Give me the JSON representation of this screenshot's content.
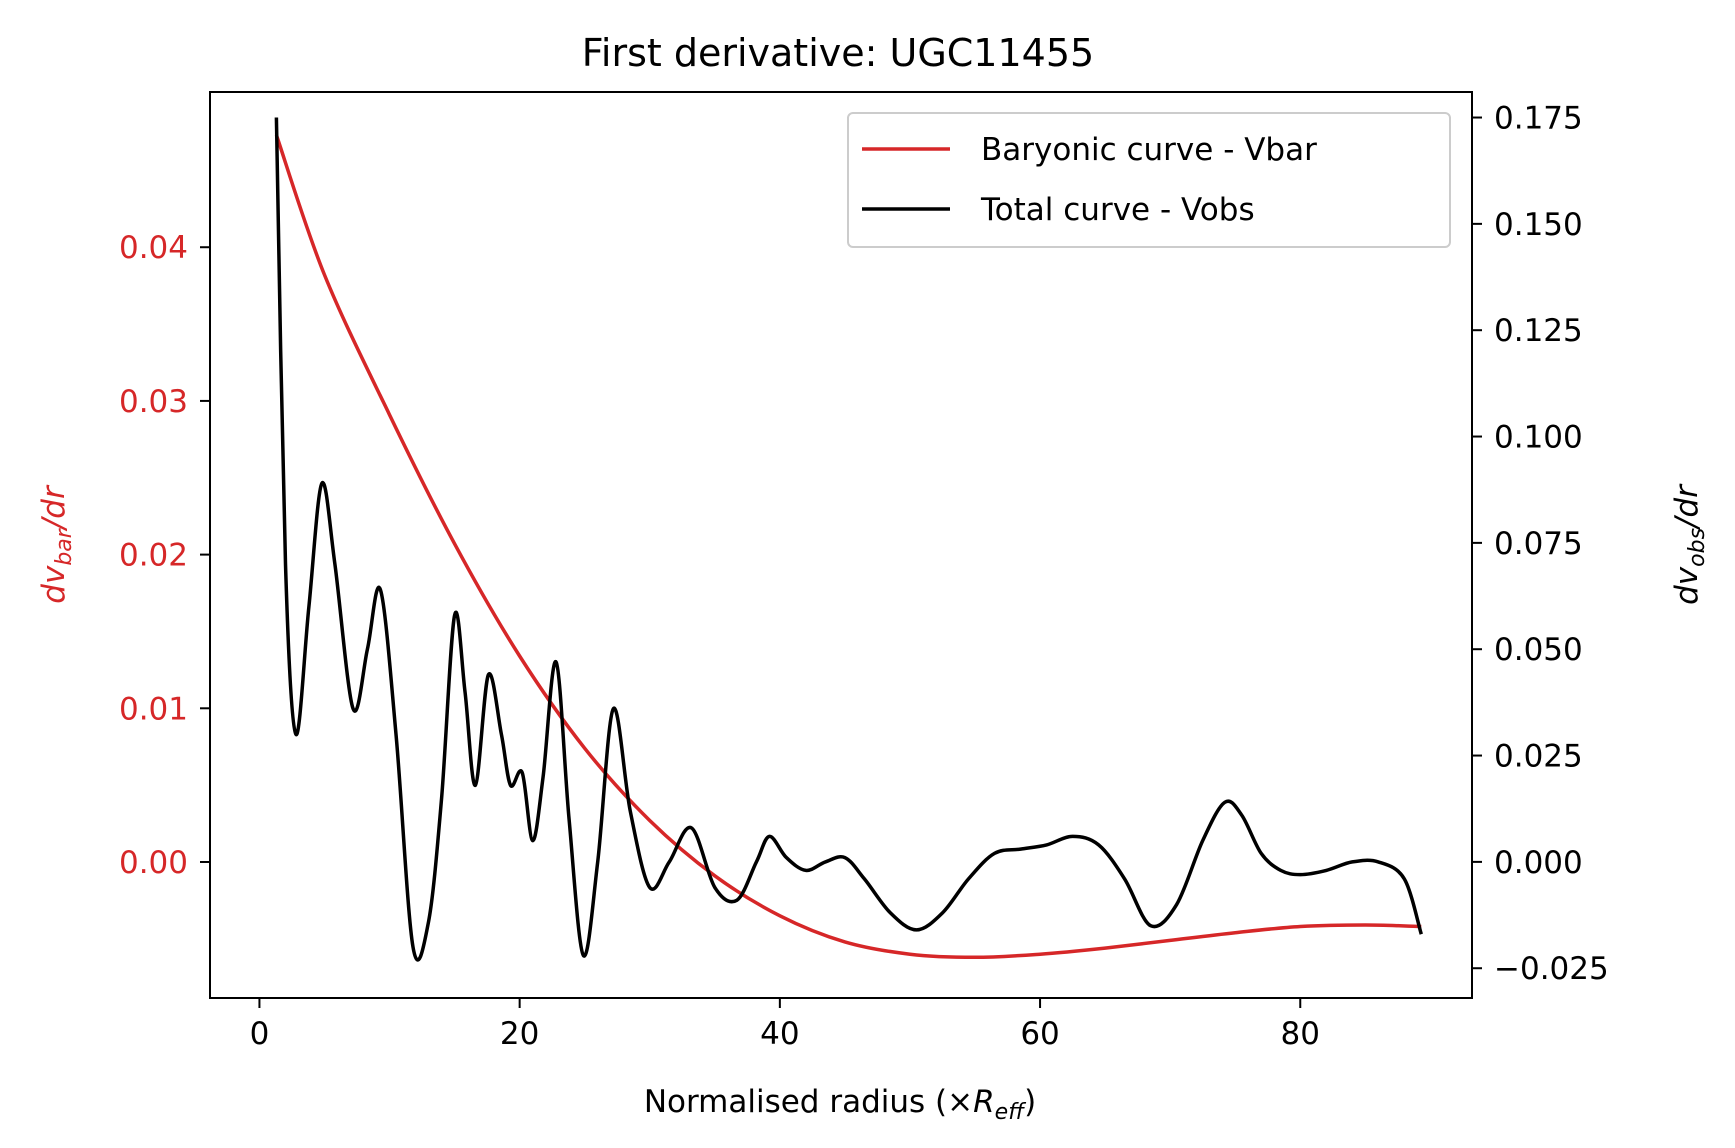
{
  "chart_data": {
    "type": "line",
    "title": "First derivative: UGC11455",
    "xlabel": {
      "main": "Normalised radius (×",
      "symbol": "R",
      "sub": "eff",
      "close": ")"
    },
    "ylabel_left": {
      "prefix": "dv",
      "sub": "bar",
      "suffix": "/dr"
    },
    "ylabel_right": {
      "prefix": "dv",
      "sub": "obs",
      "suffix": "/dr"
    },
    "xlim": [
      -3.8,
      93.2
    ],
    "ylim_left": [
      -0.00885,
      0.0501
    ],
    "ylim_right": [
      -0.032,
      0.181
    ],
    "xticks": [
      0,
      20,
      40,
      60,
      80
    ],
    "xtick_labels": [
      "0",
      "20",
      "40",
      "60",
      "80"
    ],
    "yticks_left": [
      0.0,
      0.01,
      0.02,
      0.03,
      0.04
    ],
    "ytick_labels_left": [
      "0.00",
      "0.01",
      "0.02",
      "0.03",
      "0.04"
    ],
    "yticks_right": [
      -0.025,
      0.0,
      0.025,
      0.05,
      0.075,
      0.1,
      0.125,
      0.15,
      0.175
    ],
    "ytick_labels_right": [
      "−0.025",
      "0.000",
      "0.025",
      "0.050",
      "0.075",
      "0.100",
      "0.125",
      "0.150",
      "0.175"
    ],
    "grid": false,
    "legend_position": "top-right",
    "colors": {
      "bar": "#d62728",
      "obs": "#000000",
      "axis": "#000000"
    },
    "series": [
      {
        "name": "Baryonic curve - Vbar",
        "axis": "left",
        "color": "#d62728",
        "x": [
          1.3,
          5,
          10,
          15,
          20,
          25,
          30,
          35,
          40,
          45,
          50,
          55,
          60,
          65,
          70,
          75,
          80,
          85,
          89.3
        ],
        "y": [
          0.0473,
          0.0382,
          0.0291,
          0.0207,
          0.0134,
          0.0074,
          0.0027,
          -0.0009,
          -0.0035,
          -0.0052,
          -0.006,
          -0.0062,
          -0.006,
          -0.0056,
          -0.0051,
          -0.0046,
          -0.0042,
          -0.0041,
          -0.0042
        ]
      },
      {
        "name": "Total curve - Vobs",
        "axis": "right",
        "color": "#000000",
        "x": [
          1.3,
          2.0,
          2.8,
          3.8,
          4.8,
          5.8,
          7.2,
          8.3,
          9.3,
          10.5,
          11.8,
          13.0,
          14.0,
          15.0,
          15.8,
          16.6,
          17.6,
          18.6,
          19.3,
          20.2,
          21.0,
          21.8,
          22.8,
          23.8,
          24.9,
          26.0,
          27.2,
          28.5,
          30.0,
          31.5,
          33.2,
          35.0,
          36.7,
          38.2,
          39.2,
          40.5,
          42.0,
          43.5,
          45.0,
          46.5,
          48.5,
          50.5,
          52.5,
          54.5,
          56.5,
          58.5,
          60.5,
          62.5,
          64.5,
          66.5,
          68.5,
          70.5,
          72.5,
          74.2,
          75.5,
          77.0,
          78.5,
          80.0,
          82.0,
          84.0,
          86.0,
          88.0,
          89.3
        ],
        "y": [
          0.175,
          0.07,
          0.03,
          0.06,
          0.089,
          0.07,
          0.036,
          0.05,
          0.064,
          0.03,
          -0.02,
          -0.014,
          0.015,
          0.058,
          0.04,
          0.018,
          0.044,
          0.03,
          0.018,
          0.021,
          0.005,
          0.02,
          0.047,
          0.01,
          -0.022,
          0.0,
          0.036,
          0.012,
          -0.006,
          0.0,
          0.008,
          -0.006,
          -0.009,
          0.0,
          0.006,
          0.001,
          -0.002,
          0.0,
          0.001,
          -0.004,
          -0.012,
          -0.016,
          -0.012,
          -0.004,
          0.002,
          0.003,
          0.004,
          0.006,
          0.004,
          -0.004,
          -0.015,
          -0.01,
          0.005,
          0.014,
          0.011,
          0.002,
          -0.002,
          -0.003,
          -0.002,
          0.0,
          0.0,
          -0.004,
          -0.017
        ]
      }
    ]
  }
}
